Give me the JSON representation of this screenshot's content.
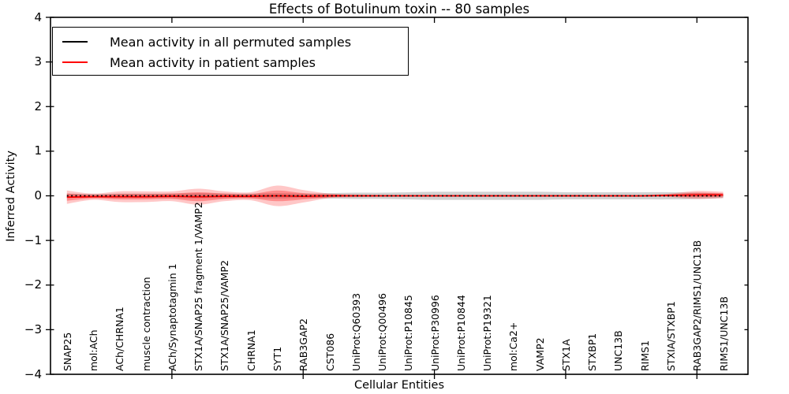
{
  "title": "Effects of Botulinum toxin -- 80 samples",
  "axes": {
    "ylabel": "Inferred Activity",
    "xlabel": "Cellular Entities",
    "yticks": [
      4,
      3,
      2,
      1,
      0,
      -1,
      -2,
      -3,
      -4
    ],
    "ylim": [
      -4,
      4
    ]
  },
  "legend": {
    "items": [
      {
        "label": "Mean activity in all permuted samples",
        "color": "#000000"
      },
      {
        "label": "Mean activity in patient samples",
        "color": "#ff0000"
      }
    ]
  },
  "chart_data": {
    "type": "line",
    "title": "Effects of Botulinum toxin -- 80 samples",
    "xlabel": "Cellular Entities",
    "ylabel": "Inferred Activity",
    "ylim": [
      -4,
      4
    ],
    "grid": false,
    "legend_position": "upper left",
    "x_major_ticks": [
      5,
      10,
      15,
      20,
      25
    ],
    "categories": [
      "SNAP25",
      "mol:ACh",
      "ACh/CHRNA1",
      "muscle contraction",
      "ACh/Synaptotagmin 1",
      "STX1A/SNAP25 fragment 1/VAMP2",
      "STX1A/SNAP25/VAMP2",
      "CHRNA1",
      "SYT1",
      "RAB3GAP2",
      "CST086",
      "UniProt:Q60393",
      "UniProt:Q00496",
      "UniProt:P10845",
      "UniProt:P30996",
      "UniProt:P10844",
      "UniProt:P19321",
      "mol:Ca2+",
      "VAMP2",
      "STX1A",
      "STXBP1",
      "UNC13B",
      "RIMS1",
      "STXIA/STXBP1",
      "RAB3GAP2/RIMS1/UNC13B",
      "RIMS1/UNC13B"
    ],
    "series": [
      {
        "name": "Mean activity in all permuted samples",
        "color": "#000000",
        "style": "dotted",
        "values": [
          0,
          0,
          0,
          0,
          0,
          0,
          0,
          0,
          0,
          0,
          0,
          0,
          0,
          0,
          0,
          0,
          0,
          0,
          0,
          0,
          0,
          0,
          0,
          0,
          0,
          0
        ]
      },
      {
        "name": "Mean activity in patient samples",
        "color": "#ff0000",
        "style": "solid",
        "values": [
          -0.03,
          -0.02,
          -0.02,
          -0.02,
          -0.01,
          -0.02,
          -0.01,
          -0.01,
          0,
          -0.01,
          0,
          0,
          0,
          0,
          0,
          0,
          0,
          0,
          0,
          0,
          0,
          0,
          0,
          0.01,
          0.02,
          0.02
        ]
      }
    ],
    "bands": [
      {
        "name": "permuted-samples-std",
        "color": "#999999",
        "opacity": 0.45,
        "center_series": 0,
        "half_widths": [
          0.05,
          0.04,
          0.05,
          0.05,
          0.05,
          0.06,
          0.05,
          0.05,
          0.06,
          0.05,
          0.06,
          0.07,
          0.07,
          0.08,
          0.09,
          0.09,
          0.09,
          0.09,
          0.09,
          0.08,
          0.08,
          0.08,
          0.08,
          0.08,
          0.07,
          0.05
        ]
      },
      {
        "name": "patient-samples-std-outer",
        "color": "#ff0000",
        "opacity": 0.22,
        "center_series": 1,
        "half_widths": [
          0.15,
          0.07,
          0.12,
          0.12,
          0.11,
          0.18,
          0.11,
          0.09,
          0.23,
          0.14,
          0.05,
          0.03,
          0.02,
          0.02,
          0.02,
          0.02,
          0.02,
          0.02,
          0.02,
          0.02,
          0.02,
          0.02,
          0.02,
          0.04,
          0.09,
          0.07
        ]
      },
      {
        "name": "patient-samples-std-inner",
        "color": "#ff0000",
        "opacity": 0.3,
        "center_series": 1,
        "half_widths": [
          0.08,
          0.04,
          0.06,
          0.06,
          0.06,
          0.1,
          0.06,
          0.05,
          0.12,
          0.07,
          0.03,
          0.015,
          0.01,
          0.01,
          0.01,
          0.01,
          0.01,
          0.01,
          0.01,
          0.01,
          0.01,
          0.01,
          0.01,
          0.02,
          0.05,
          0.04
        ]
      }
    ]
  }
}
